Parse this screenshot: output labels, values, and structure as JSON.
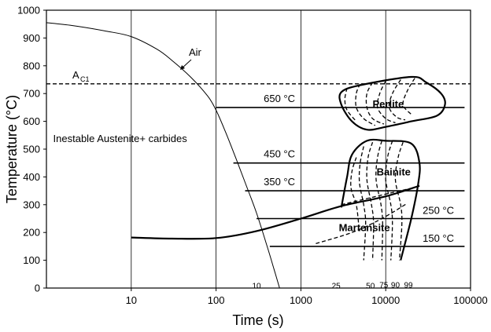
{
  "chart_data": {
    "type": "line",
    "xlabel": "Time (s)",
    "ylabel": "Temperature (°C)",
    "xscale": "log",
    "xlim": [
      1,
      100000
    ],
    "ylim": [
      0,
      1000
    ],
    "x_ticks": [
      {
        "value": 10,
        "label": "10"
      },
      {
        "value": 100,
        "label": "100"
      },
      {
        "value": 1000,
        "label": "1000"
      },
      {
        "value": 10000,
        "label": "10000"
      },
      {
        "value": 100000,
        "label": "100000"
      }
    ],
    "y_ticks": [
      {
        "value": 0,
        "label": "0"
      },
      {
        "value": 100,
        "label": "100"
      },
      {
        "value": 200,
        "label": "200"
      },
      {
        "value": 300,
        "label": "300"
      },
      {
        "value": 400,
        "label": "400"
      },
      {
        "value": 500,
        "label": "500"
      },
      {
        "value": 600,
        "label": "600"
      },
      {
        "value": 700,
        "label": "700"
      },
      {
        "value": 800,
        "label": "800"
      },
      {
        "value": 900,
        "label": "900"
      },
      {
        "value": 1000,
        "label": "1000"
      }
    ],
    "grid": {
      "vertical_at": [
        10,
        100,
        1000,
        10000
      ],
      "horizontal": false
    },
    "ac1": {
      "label_main": "A",
      "label_sub": "C1",
      "temperature": 735
    },
    "air_curve": {
      "label": "Air",
      "points": [
        [
          1,
          955
        ],
        [
          2,
          945
        ],
        [
          5,
          925
        ],
        [
          10,
          905
        ],
        [
          20,
          860
        ],
        [
          30,
          820
        ],
        [
          50,
          760
        ],
        [
          80,
          690
        ],
        [
          100,
          640
        ],
        [
          130,
          560
        ],
        [
          170,
          470
        ],
        [
          220,
          380
        ],
        [
          300,
          270
        ],
        [
          400,
          150
        ],
        [
          480,
          70
        ],
        [
          560,
          0
        ]
      ]
    },
    "isotherms": [
      {
        "label": "650 °C",
        "temperature": 650,
        "x_start": 100,
        "x_end": 85000
      },
      {
        "label": "450 °C",
        "temperature": 450,
        "x_start": 160,
        "x_end": 85000
      },
      {
        "label": "350 °C",
        "temperature": 350,
        "x_start": 220,
        "x_end": 85000
      },
      {
        "label": "250 °C",
        "temperature": 250,
        "x_start": 300,
        "x_end": 85000
      },
      {
        "label": "150 °C",
        "temperature": 150,
        "x_start": 430,
        "x_end": 85000
      }
    ],
    "martensite_start": {
      "points": [
        [
          10,
          182
        ],
        [
          30,
          178
        ],
        [
          100,
          180
        ],
        [
          300,
          205
        ],
        [
          1000,
          250
        ],
        [
          3000,
          295
        ],
        [
          10000,
          330
        ],
        [
          25000,
          368
        ]
      ]
    },
    "regions": [
      {
        "label": "Inestable Austenite+ carbides",
        "x": 1.2,
        "y": 525,
        "style": "normal"
      },
      {
        "label": "Perlite",
        "x": 7000,
        "y": 650,
        "style": "bold"
      },
      {
        "label": "Bainite",
        "x": 7800,
        "y": 405,
        "style": "bold"
      },
      {
        "label": "Martensite",
        "x": 2800,
        "y": 205,
        "style": "bold"
      }
    ],
    "perlite_outline": [
      [
        3000,
        705
      ],
      [
        5000,
        730
      ],
      [
        20000,
        760
      ],
      [
        30000,
        740
      ],
      [
        45000,
        700
      ],
      [
        50000,
        660
      ],
      [
        40000,
        620
      ],
      [
        20000,
        600
      ],
      [
        10000,
        580
      ],
      [
        6000,
        570
      ],
      [
        4000,
        600
      ],
      [
        3000,
        660
      ]
    ],
    "bainite_outline": [
      [
        3000,
        290
      ],
      [
        3500,
        400
      ],
      [
        4000,
        480
      ],
      [
        6000,
        530
      ],
      [
        10000,
        530
      ],
      [
        20000,
        520
      ],
      [
        25000,
        450
      ],
      [
        24000,
        370
      ],
      [
        20000,
        250
      ],
      [
        15000,
        100
      ]
    ],
    "perlite_dashed": [
      [
        [
          3500,
          720
        ],
        [
          3300,
          680
        ],
        [
          3500,
          640
        ],
        [
          4500,
          600
        ]
      ],
      [
        [
          5000,
          735
        ],
        [
          4500,
          700
        ],
        [
          4500,
          650
        ],
        [
          5500,
          610
        ],
        [
          7500,
          585
        ]
      ],
      [
        [
          7000,
          740
        ],
        [
          6000,
          700
        ],
        [
          6000,
          650
        ],
        [
          7000,
          610
        ],
        [
          9500,
          590
        ]
      ],
      [
        [
          10000,
          745
        ],
        [
          8500,
          700
        ],
        [
          8000,
          650
        ],
        [
          10000,
          610
        ],
        [
          13000,
          595
        ]
      ],
      [
        [
          15000,
          750
        ],
        [
          12000,
          700
        ],
        [
          11000,
          650
        ],
        [
          13500,
          615
        ],
        [
          17000,
          605
        ]
      ],
      [
        [
          22000,
          755
        ],
        [
          18000,
          710
        ],
        [
          16000,
          660
        ],
        [
          20000,
          625
        ]
      ]
    ],
    "bainite_dashed": [
      [
        [
          4500,
          470
        ],
        [
          4000,
          420
        ],
        [
          3900,
          360
        ],
        [
          4500,
          300
        ],
        [
          4800,
          230
        ]
      ],
      [
        [
          5500,
          510
        ],
        [
          5000,
          450
        ],
        [
          4900,
          380
        ],
        [
          5500,
          300
        ],
        [
          5800,
          230
        ],
        [
          5500,
          100
        ]
      ],
      [
        [
          7000,
          525
        ],
        [
          6200,
          470
        ],
        [
          6000,
          390
        ],
        [
          6800,
          300
        ],
        [
          7200,
          230
        ],
        [
          7000,
          100
        ]
      ],
      [
        [
          9000,
          530
        ],
        [
          8000,
          470
        ],
        [
          7700,
          390
        ],
        [
          8800,
          300
        ],
        [
          9200,
          230
        ],
        [
          9000,
          100
        ]
      ],
      [
        [
          12000,
          530
        ],
        [
          10500,
          470
        ],
        [
          10000,
          390
        ],
        [
          11500,
          300
        ],
        [
          12000,
          230
        ],
        [
          11500,
          100
        ]
      ],
      [
        [
          16000,
          525
        ],
        [
          14000,
          470
        ],
        [
          13000,
          390
        ],
        [
          15000,
          300
        ],
        [
          15500,
          230
        ],
        [
          14500,
          100
        ]
      ]
    ],
    "cooling_dashed": [
      [
        [
          3000,
          300
        ],
        [
          10000,
          338
        ],
        [
          22000,
          362
        ]
      ],
      [
        [
          1500,
          160
        ],
        [
          4000,
          200
        ],
        [
          9000,
          250
        ],
        [
          18000,
          305
        ]
      ]
    ],
    "percent_labels": [
      {
        "label": "10",
        "x": 300,
        "y": 55
      },
      {
        "label": "25",
        "x": 2600,
        "y": 55
      },
      {
        "label": "50",
        "x": 6600,
        "y": 55
      },
      {
        "label": "75",
        "x": 9500,
        "y": 58
      },
      {
        "label": "90",
        "x": 13000,
        "y": 58
      },
      {
        "label": "99",
        "x": 18500,
        "y": 58
      }
    ]
  }
}
